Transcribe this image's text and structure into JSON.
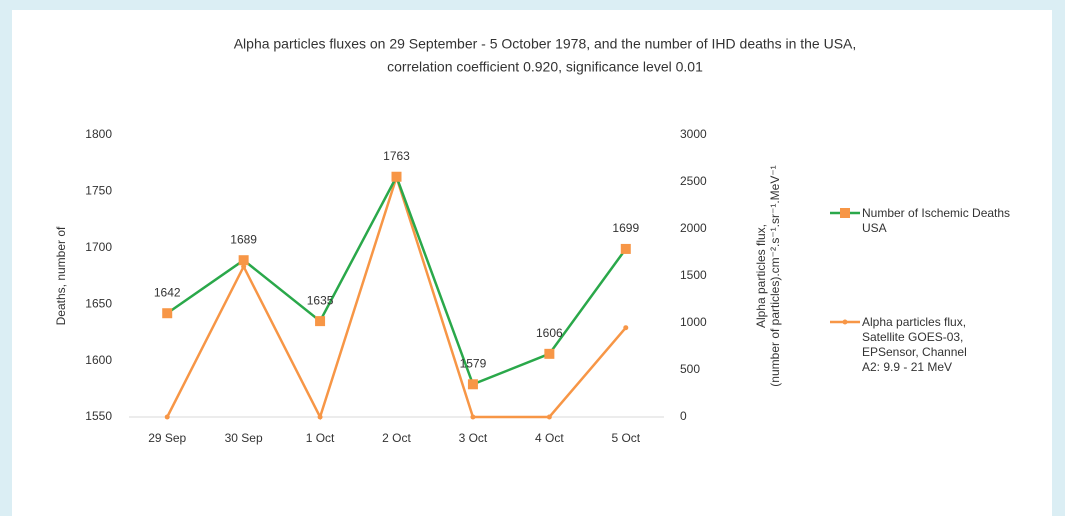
{
  "chart_data": {
    "type": "line",
    "title": [
      "Alpha particles fluxes on 29 September - 5 October 1978, and the number of IHD deaths in the USA,",
      "correlation coefficient 0.920, significance level 0.01"
    ],
    "categories": [
      "29 Sep",
      "30 Sep",
      "1 Oct",
      "2 Oct",
      "3 Oct",
      "4 Oct",
      "5 Oct"
    ],
    "series": [
      {
        "name": "Number of Ischemic Deaths USA",
        "color": "#2aa84a",
        "marker_color": "#f79646",
        "values": [
          1642,
          1689,
          1635,
          1763,
          1579,
          1606,
          1699
        ]
      },
      {
        "name": "Alpha particles flux, Satellite GOES-03, EPSensor, Channel A2: 9.9 - 21 MeV",
        "color": "#f79646",
        "axis": "y2",
        "values": [
          0,
          1600,
          0,
          2550,
          0,
          0,
          950
        ]
      }
    ],
    "ylabel": "Deaths, number of",
    "y2label": [
      "Alpha particles flux,",
      "(number of particles).cm⁻².s⁻¹.sr⁻¹.MeV⁻¹"
    ],
    "ylim": [
      1550,
      1800
    ],
    "yticks": [
      1550,
      1600,
      1650,
      1700,
      1750,
      1800
    ],
    "y2lim": [
      0,
      3000
    ],
    "y2ticks": [
      0,
      500,
      1000,
      1500,
      2000,
      2500,
      3000
    ],
    "legend": "right"
  }
}
